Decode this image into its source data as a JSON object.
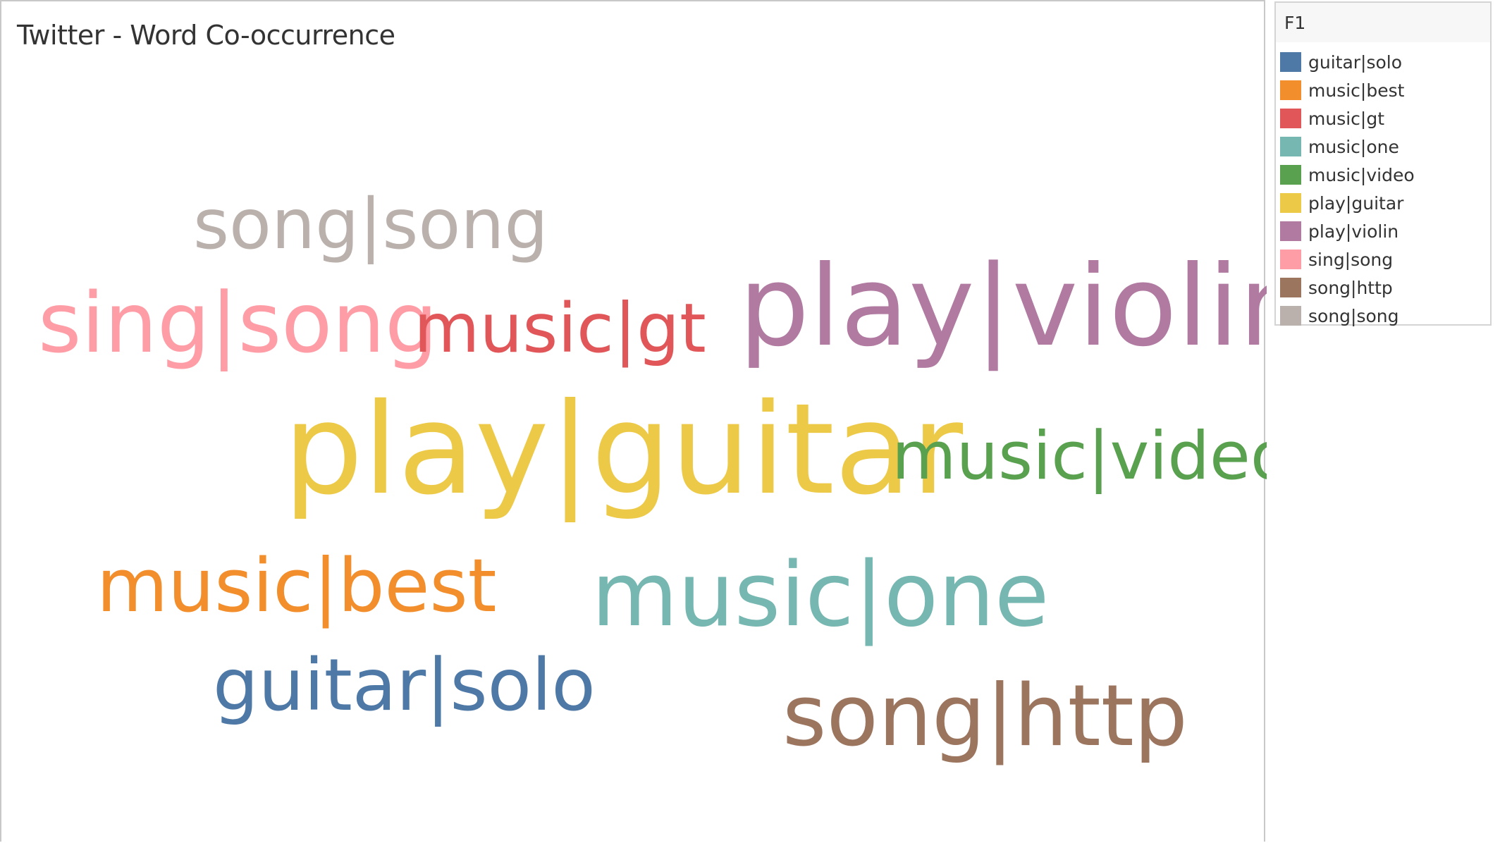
{
  "title": "Twitter - Word Co-occurrence",
  "legend": {
    "title": "F1",
    "items": [
      {
        "label": "guitar|solo",
        "color": "#4e79a7"
      },
      {
        "label": "music|best",
        "color": "#f28e2b"
      },
      {
        "label": "music|gt",
        "color": "#e15759"
      },
      {
        "label": "music|one",
        "color": "#76b7b2"
      },
      {
        "label": "music|video",
        "color": "#59a14f"
      },
      {
        "label": "play|guitar",
        "color": "#edc948"
      },
      {
        "label": "play|violin",
        "color": "#b07aa1"
      },
      {
        "label": "sing|song",
        "color": "#ff9da7"
      },
      {
        "label": "song|http",
        "color": "#9c755f"
      },
      {
        "label": "song|song",
        "color": "#bab0ac"
      }
    ]
  },
  "chart_data": {
    "type": "word-cloud",
    "title": "Twitter - Word Co-occurrence",
    "legend_title": "F1",
    "legend_placement": "right",
    "words": [
      {
        "text": "song|song",
        "color": "#bab0ac"
      },
      {
        "text": "sing|song",
        "color": "#ff9da7"
      },
      {
        "text": "music|gt",
        "color": "#e15759"
      },
      {
        "text": "play|violin",
        "color": "#b07aa1"
      },
      {
        "text": "play|guitar",
        "color": "#edc948"
      },
      {
        "text": "music|video",
        "color": "#59a14f"
      },
      {
        "text": "music|best",
        "color": "#f28e2b"
      },
      {
        "text": "music|one",
        "color": "#76b7b2"
      },
      {
        "text": "guitar|solo",
        "color": "#4e79a7"
      },
      {
        "text": "song|http",
        "color": "#9c755f"
      }
    ]
  }
}
